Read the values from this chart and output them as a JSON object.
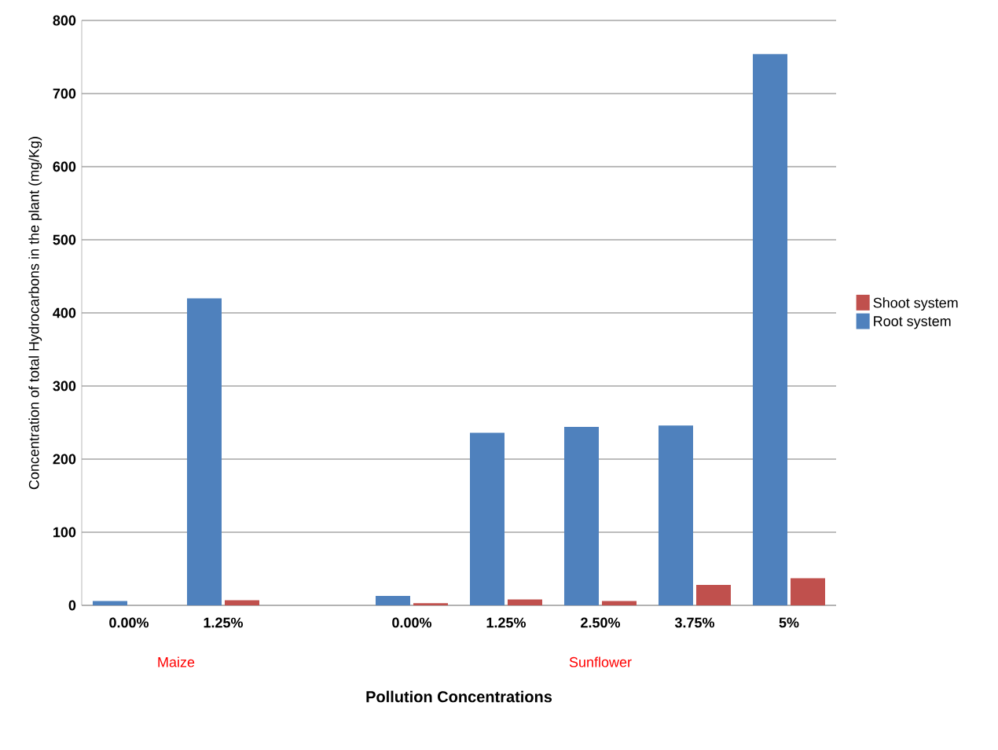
{
  "chart_data": {
    "type": "bar",
    "ylabel": "Concentration of total Hydrocarbons in the plant   (mg/Kg)",
    "xlabel": "Pollution Concentrations",
    "categories": [
      "0.00%",
      "1.25%",
      null,
      "0.00%",
      "1.25%",
      "2.50%",
      "3.75%",
      "5%"
    ],
    "series": [
      {
        "name": "Root system",
        "color": "#4f81bd",
        "values": [
          6,
          420,
          null,
          13,
          236,
          244,
          246,
          754
        ]
      },
      {
        "name": "Shoot system",
        "color": "#c0504d",
        "values": [
          0,
          7,
          null,
          3,
          8,
          6,
          28,
          37
        ]
      }
    ],
    "annotations": [
      "Maize",
      "Sunflower"
    ],
    "ylim": [
      0,
      800
    ],
    "yticks": [
      0,
      100,
      200,
      300,
      400,
      500,
      600,
      700,
      800
    ],
    "grid": "y",
    "legend": "right"
  }
}
